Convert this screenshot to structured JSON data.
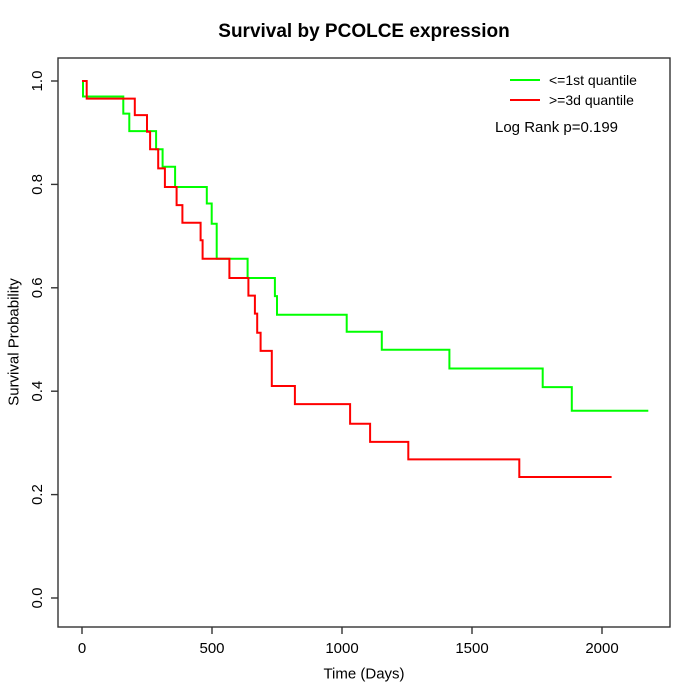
{
  "chart_data": {
    "type": "line",
    "subtype": "kaplan-meier-step",
    "title": "Survival by PCOLCE expression",
    "xlabel": "Time (Days)",
    "ylabel": "Survival Probability",
    "xlim": [
      0,
      2200
    ],
    "ylim": [
      0.0,
      1.0
    ],
    "grid": false,
    "x_ticks": [
      0,
      500,
      1000,
      1500,
      2000
    ],
    "x_tick_labels": [
      "0",
      "500",
      "1000",
      "1500",
      "2000"
    ],
    "y_ticks": [
      0.0,
      0.2,
      0.4,
      0.6,
      0.8,
      1.0
    ],
    "y_tick_labels": [
      "0.0",
      "0.2",
      "0.4",
      "0.6",
      "0.8",
      "1.0"
    ],
    "legend": {
      "position": "top-right",
      "entries": [
        {
          "label": "<=1st quantile",
          "color": "#00ff00"
        },
        {
          "label": ">=3d quantile",
          "color": "#ff0000"
        }
      ]
    },
    "annotation": "Log Rank p=0.199",
    "series": [
      {
        "name": "<=1st quantile",
        "color": "#00ff00",
        "end_time": 2178,
        "steps": [
          [
            0,
            1.0
          ],
          [
            4,
            0.97
          ],
          [
            159,
            0.937
          ],
          [
            182,
            0.903
          ],
          [
            285,
            0.868
          ],
          [
            310,
            0.834
          ],
          [
            358,
            0.795
          ],
          [
            480,
            0.763
          ],
          [
            499,
            0.724
          ],
          [
            518,
            0.656
          ],
          [
            637,
            0.619
          ],
          [
            742,
            0.584
          ],
          [
            750,
            0.548
          ],
          [
            1018,
            0.515
          ],
          [
            1153,
            0.48
          ],
          [
            1413,
            0.444
          ],
          [
            1772,
            0.408
          ],
          [
            1884,
            0.362
          ]
        ]
      },
      {
        "name": ">=3d quantile",
        "color": "#ff0000",
        "end_time": 2037,
        "steps": [
          [
            0,
            1.0
          ],
          [
            18,
            0.966
          ],
          [
            203,
            0.934
          ],
          [
            250,
            0.902
          ],
          [
            262,
            0.868
          ],
          [
            293,
            0.831
          ],
          [
            319,
            0.795
          ],
          [
            364,
            0.76
          ],
          [
            386,
            0.726
          ],
          [
            456,
            0.692
          ],
          [
            464,
            0.656
          ],
          [
            567,
            0.619
          ],
          [
            640,
            0.585
          ],
          [
            665,
            0.55
          ],
          [
            674,
            0.513
          ],
          [
            687,
            0.478
          ],
          [
            730,
            0.41
          ],
          [
            819,
            0.375
          ],
          [
            1031,
            0.337
          ],
          [
            1108,
            0.302
          ],
          [
            1255,
            0.268
          ],
          [
            1682,
            0.234
          ]
        ]
      }
    ],
    "axis_color": "#333333",
    "text_color": "#000000"
  }
}
